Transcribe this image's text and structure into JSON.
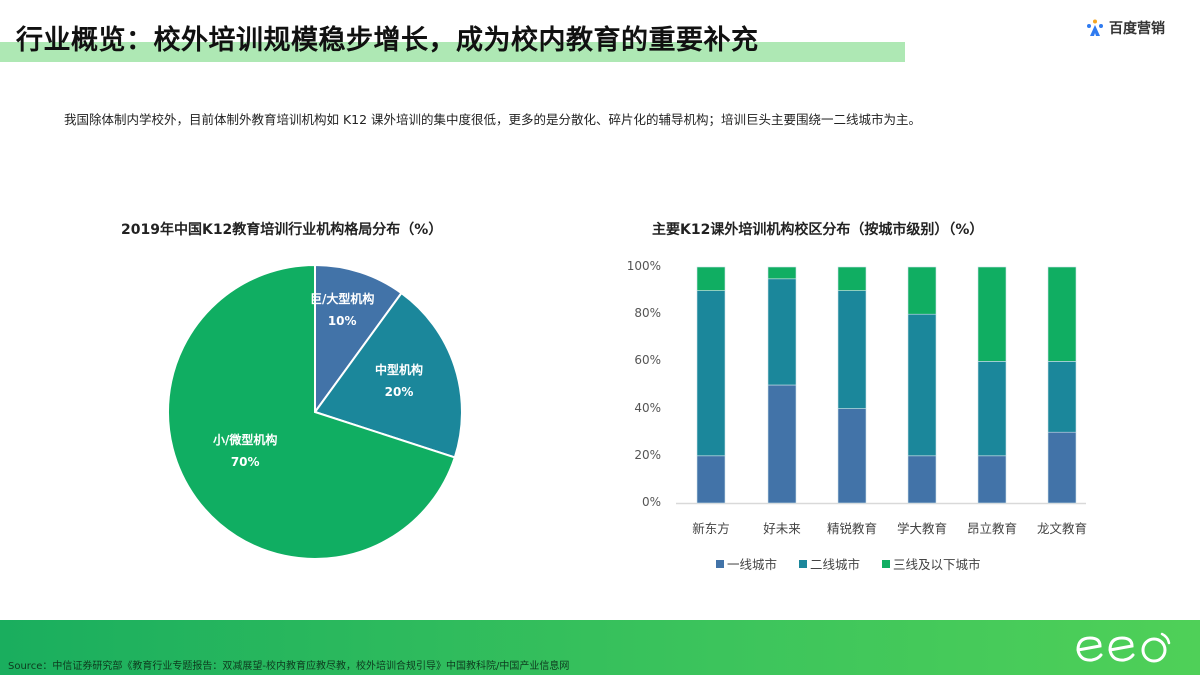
{
  "header": {
    "title": "行业概览：校外培训规模稳步增长，成为校内教育的重要补充",
    "brand_logo_text": "百度营销",
    "brand_logo_icon": "baidu-paw-icon"
  },
  "subtitle": "我国除体制内学校外，目前体制外教育培训机构如 K12 课外培训的集中度很低，更多的是分散化、碎片化的辅导机构；培训巨头主要围绕一二线城市为主。",
  "colors": {
    "blue": "#4273a8",
    "teal": "#1b879b",
    "green": "#10ae62",
    "title_band": "#aee8b4",
    "footer_green": "#3cc45c"
  },
  "pie": {
    "title": "2019年中国K12教育培训行业机构格局分布（%）",
    "slices": [
      {
        "label": "巨/大型机构",
        "value_label": "10%"
      },
      {
        "label": "中型机构",
        "value_label": "20%"
      },
      {
        "label": "小/微型机构",
        "value_label": "70%"
      }
    ]
  },
  "bar": {
    "title": "主要K12课外培训机构校区分布（按城市级别）（%）",
    "yticks": [
      "100%",
      "80%",
      "60%",
      "40%",
      "20%",
      "0%"
    ],
    "categories": [
      "新东方",
      "好未来",
      "精锐教育",
      "学大教育",
      "昂立教育",
      "龙文教育"
    ],
    "legend": [
      "一线城市",
      "二线城市",
      "三线及以下城市"
    ]
  },
  "chart_data": [
    {
      "type": "pie",
      "title": "2019年中国K12教育培训行业机构格局分布（%）",
      "categories": [
        "巨/大型机构",
        "中型机构",
        "小/微型机构"
      ],
      "values": [
        10,
        20,
        70
      ],
      "colors": [
        "#4273a8",
        "#1b879b",
        "#10ae62"
      ],
      "start_angle": "12 o'clock, clockwise"
    },
    {
      "type": "bar",
      "stacked": true,
      "normalized": true,
      "title": "主要K12课外培训机构校区分布（按城市级别）（%）",
      "categories": [
        "新东方",
        "好未来",
        "精锐教育",
        "学大教育",
        "昂立教育",
        "龙文教育"
      ],
      "series": [
        {
          "name": "一线城市",
          "values": [
            20,
            50,
            40,
            20,
            20,
            30
          ],
          "color": "#4273a8"
        },
        {
          "name": "二线城市",
          "values": [
            70,
            45,
            50,
            60,
            40,
            30
          ],
          "color": "#1b879b"
        },
        {
          "name": "三线及以下城市",
          "values": [
            10,
            5,
            10,
            20,
            40,
            40
          ],
          "color": "#10ae62"
        }
      ],
      "xlabel": "",
      "ylabel": "",
      "ylim": [
        0,
        100
      ],
      "yticks": [
        "0%",
        "20%",
        "40%",
        "60%",
        "80%",
        "100%"
      ],
      "grid": false,
      "legend_position": "bottom"
    }
  ],
  "footer": {
    "source": "Source：中信证券研究部《教育行业专题报告：双减展望-校内教育应教尽教，校外培训合规引导》中国教科院/中国产业信息网",
    "logo_text": "eeo"
  }
}
